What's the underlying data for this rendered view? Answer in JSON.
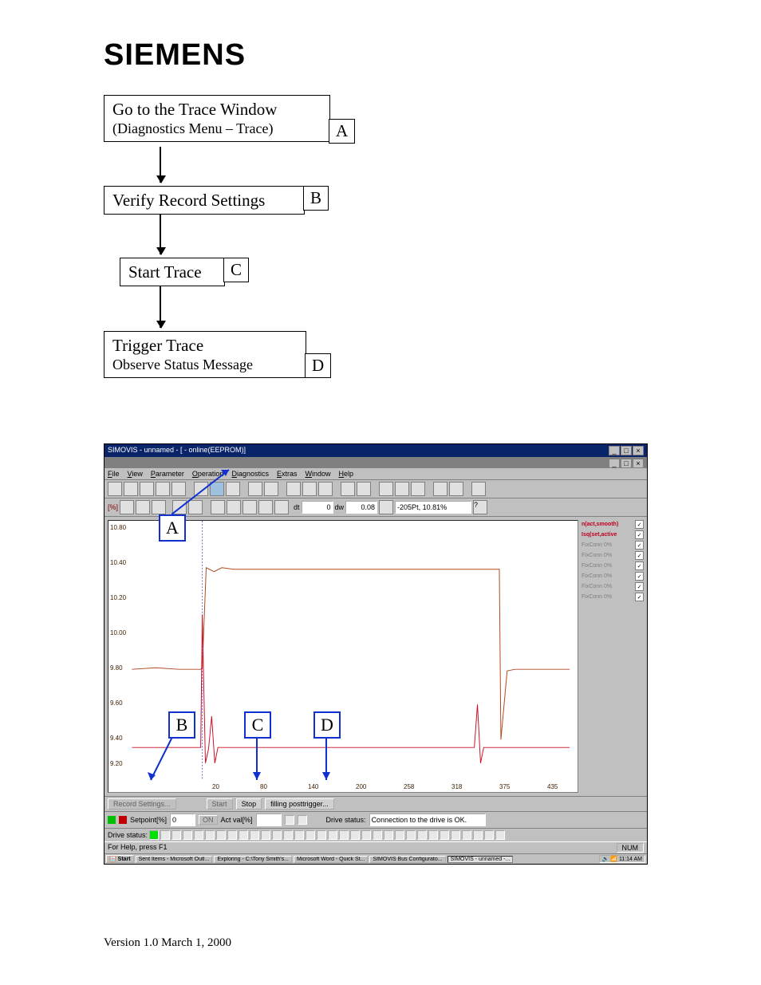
{
  "brand": "SIEMENS",
  "flow": {
    "stepA": {
      "title": "Go to the Trace Window",
      "sub": "(Diagnostics Menu – Trace)",
      "tag": "A"
    },
    "stepB": {
      "title": "Verify Record Settings",
      "tag": "B"
    },
    "stepC": {
      "title": "Start Trace",
      "tag": "C"
    },
    "stepD": {
      "title": "Trigger Trace",
      "sub": "Observe Status Message",
      "tag": "D"
    }
  },
  "window": {
    "title": "SIMOVIS - unnamed -  [ - online(EEPROM)]",
    "menus": [
      "File",
      "View",
      "Parameter",
      "Operation",
      "Diagnostics",
      "Extras",
      "Window",
      "Help"
    ],
    "toolbar2": {
      "dt": "0",
      "dw": "0.08",
      "cursor": "-205Pt, 10.81%"
    },
    "yaxis": {
      "label": "[%]",
      "ticks": [
        "10.80",
        "10.40",
        "10.20",
        "10.00",
        "9.80",
        "9.60",
        "9.40",
        "9.20"
      ]
    },
    "xaxis": {
      "ticks": [
        "20",
        "80",
        "140",
        "200",
        "258",
        "318",
        "375",
        "435"
      ]
    },
    "sidebar": {
      "items": [
        {
          "label": "n(act,smooth)",
          "style": "red-b",
          "ck": true
        },
        {
          "label": "Isq(set,active",
          "style": "red-b",
          "ck": true
        },
        {
          "label": "FixConn 0%",
          "style": "gry",
          "ck": true
        },
        {
          "label": "FixConn 0%",
          "style": "gry",
          "ck": true
        },
        {
          "label": "FixConn 0%",
          "style": "gry",
          "ck": true
        },
        {
          "label": "FixConn 0%",
          "style": "gry",
          "ck": true
        },
        {
          "label": "FixConn 0%",
          "style": "gry",
          "ck": true
        },
        {
          "label": "FixConn 0%",
          "style": "gry",
          "ck": true
        }
      ]
    },
    "bottom": {
      "record": "Record  Settings...",
      "start": "Start",
      "stop": "Stop",
      "status": "filling posttrigger..."
    },
    "status": {
      "setpoint_lbl": "Setpoint[%]",
      "setpoint_val": "0",
      "on_lbl": "ON",
      "act_lbl": "Act val[%]",
      "act_val": "",
      "drivestatus_lbl": "Drive status:",
      "drivestatus_val": "Connection to the drive is OK."
    },
    "status2_lbl": "Drive status:",
    "help": "For Help, press F1",
    "num": "NUM",
    "taskbar": {
      "start": "Start",
      "items": [
        "Sent Items - Microsoft Outl...",
        "Exploring - C:\\Tony Smith's...",
        "Microsoft Word - Quick St...",
        "SIMOVIS Bus Configurato...",
        "SIMOVIS - unnamed  -..."
      ],
      "clock": "11:14 AM"
    }
  },
  "annotations": {
    "A": "A",
    "B": "B",
    "C": "C",
    "D": "D"
  },
  "footer": "Version 1.0    March 1, 2000",
  "colors": {
    "annot": "#1030d0",
    "titlebar": "#0a246a",
    "trace1": "#b04820",
    "trace2": "#c81028"
  }
}
